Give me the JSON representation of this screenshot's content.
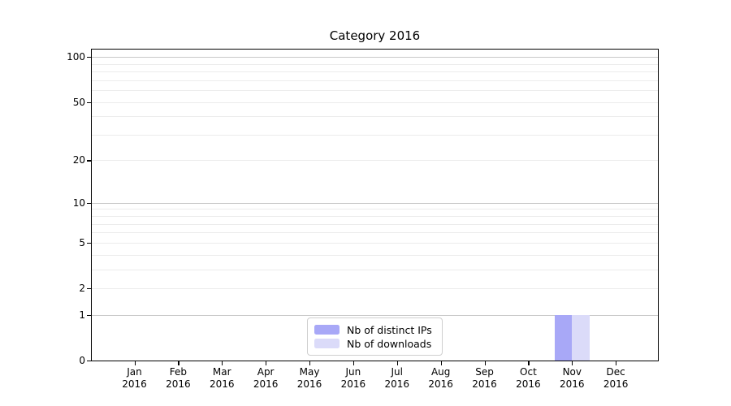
{
  "chart_data": {
    "type": "bar",
    "title": "Category 2016",
    "categories": [
      "Jan 2016",
      "Feb 2016",
      "Mar 2016",
      "Apr 2016",
      "May 2016",
      "Jun 2016",
      "Jul 2016",
      "Aug 2016",
      "Sep 2016",
      "Oct 2016",
      "Nov 2016",
      "Dec 2016"
    ],
    "series": [
      {
        "name": "Nb of distinct IPs",
        "color": "#a8a8f7",
        "values": [
          0,
          0,
          0,
          0,
          0,
          0,
          0,
          0,
          0,
          0,
          1,
          0
        ]
      },
      {
        "name": "Nb of downloads",
        "color": "#dbdbf9",
        "values": [
          0,
          0,
          0,
          0,
          0,
          0,
          0,
          0,
          0,
          0,
          1,
          0
        ]
      }
    ],
    "y_ticks": [
      0,
      1,
      2,
      5,
      10,
      20,
      50,
      100
    ],
    "y_minor_gridlines": [
      2,
      3,
      4,
      5,
      6,
      7,
      8,
      9,
      20,
      30,
      40,
      50,
      60,
      70,
      80,
      90
    ],
    "y_major_gridlines": [
      1,
      10,
      100
    ],
    "y_scale": "symlog",
    "ylim": [
      0,
      112
    ],
    "grid": "horizontal-only",
    "legend_position": "bottom-center",
    "axis_color": "#000000"
  }
}
